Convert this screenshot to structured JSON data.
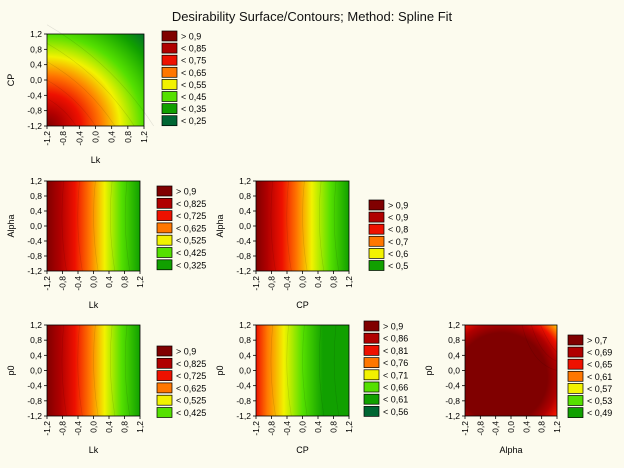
{
  "title": "Desirability Surface/Contours; Method: Spline Fit",
  "charts": {
    "ticks": [
      "-1,2",
      "-0,8",
      "-0,4",
      "0,0",
      "0,4",
      "0,8",
      "1,2"
    ],
    "colors": {
      "c8": "#800000",
      "c7": "#b00000",
      "c6": "#ee1100",
      "c5": "#ff7700",
      "c4": "#f2f200",
      "c3": "#55e000",
      "c2": "#11a000",
      "c1": "#006633"
    }
  },
  "chart_data": [
    {
      "type": "heatmap",
      "xlabel": "Lk",
      "ylabel": "CP",
      "xlim": [
        -1.2,
        1.2
      ],
      "ylim": [
        -1.2,
        1.2
      ],
      "legend": [
        "> 0,9",
        "< 0,85",
        "< 0,75",
        "< 0,65",
        "< 0,55",
        "< 0,45",
        "< 0,35",
        "< 0,25"
      ]
    },
    {
      "type": "heatmap",
      "xlabel": "Lk",
      "ylabel": "Alpha",
      "xlim": [
        -1.2,
        1.2
      ],
      "ylim": [
        -1.2,
        1.2
      ],
      "legend": [
        "> 0,9",
        "< 0,825",
        "< 0,725",
        "< 0,625",
        "< 0,525",
        "< 0,425",
        "< 0,325"
      ]
    },
    {
      "type": "heatmap",
      "xlabel": "CP",
      "ylabel": "Alpha",
      "xlim": [
        -1.2,
        1.2
      ],
      "ylim": [
        -1.2,
        1.2
      ],
      "legend": [
        "> 0,9",
        "< 0,9",
        "< 0,8",
        "< 0,7",
        "< 0,6",
        "< 0,5"
      ]
    },
    {
      "type": "heatmap",
      "xlabel": "Lk",
      "ylabel": "p0",
      "xlim": [
        -1.2,
        1.2
      ],
      "ylim": [
        -1.2,
        1.2
      ],
      "legend": [
        "> 0,9",
        "< 0,825",
        "< 0,725",
        "< 0,625",
        "< 0,525",
        "< 0,425"
      ]
    },
    {
      "type": "heatmap",
      "xlabel": "CP",
      "ylabel": "p0",
      "xlim": [
        -1.2,
        1.2
      ],
      "ylim": [
        -1.2,
        1.2
      ],
      "legend": [
        "> 0,9",
        "< 0,86",
        "< 0,81",
        "< 0,76",
        "< 0,71",
        "< 0,66",
        "< 0,61",
        "< 0,56"
      ]
    },
    {
      "type": "heatmap",
      "xlabel": "Alpha",
      "ylabel": "p0",
      "xlim": [
        -1.2,
        1.2
      ],
      "ylim": [
        -1.2,
        1.2
      ],
      "legend": [
        "> 0,7",
        "< 0,69",
        "< 0,65",
        "< 0,61",
        "< 0,57",
        "< 0,53",
        "< 0,49"
      ]
    }
  ]
}
